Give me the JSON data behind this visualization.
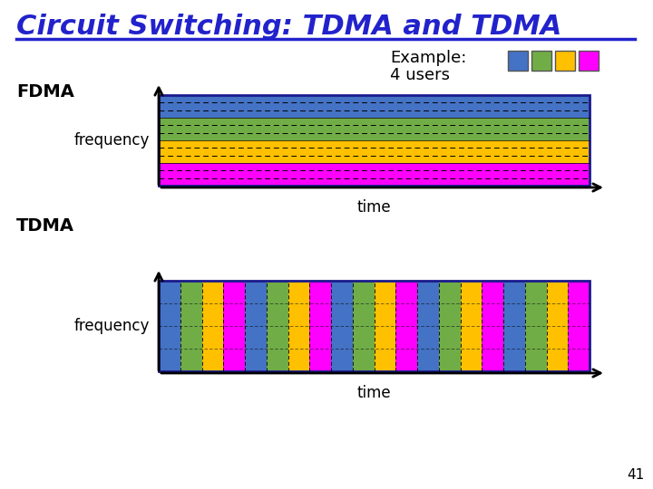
{
  "title": "Circuit Switching: TDMA and TDMA",
  "title_color": "#2222CC",
  "title_fontsize": 22,
  "background_color": "#ffffff",
  "example_text": "Example:",
  "users_text": "4 users",
  "fdma_label": "FDMA",
  "tdma_label": "TDMA",
  "freq_label": "frequency",
  "time_label": "time",
  "user_colors": [
    "#4472C4",
    "#70AD47",
    "#FFC000",
    "#FF00FF"
  ],
  "n_users": 4,
  "n_tdma_slots": 20,
  "page_number": "41"
}
